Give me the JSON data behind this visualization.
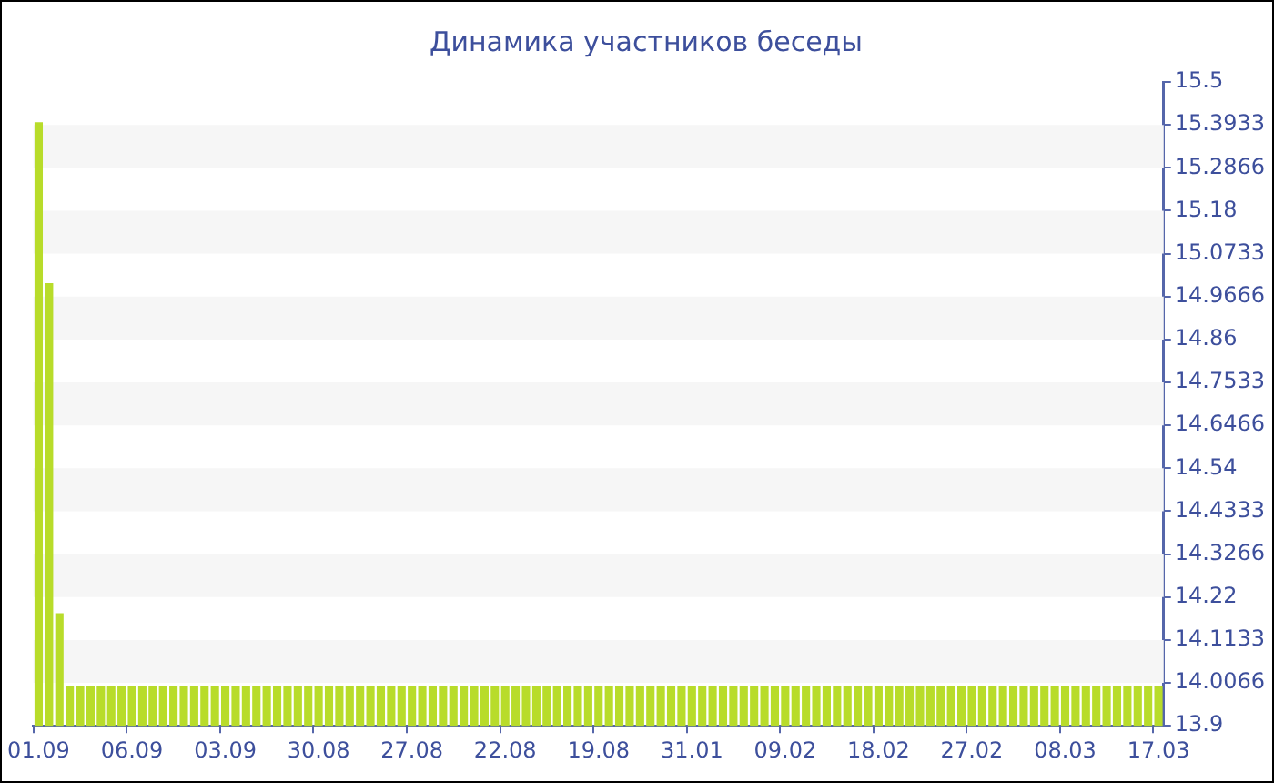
{
  "chart_data": {
    "type": "bar",
    "title": "Динамика участников беседы",
    "categories": [
      "01.09",
      null,
      null,
      null,
      null,
      null,
      null,
      null,
      null,
      "06.09",
      null,
      null,
      null,
      null,
      null,
      null,
      null,
      null,
      "03.09",
      null,
      null,
      null,
      null,
      null,
      null,
      null,
      null,
      "30.08",
      null,
      null,
      null,
      null,
      null,
      null,
      null,
      null,
      "27.08",
      null,
      null,
      null,
      null,
      null,
      null,
      null,
      null,
      "22.08",
      null,
      null,
      null,
      null,
      null,
      null,
      null,
      null,
      "19.08",
      null,
      null,
      null,
      null,
      null,
      null,
      null,
      null,
      "31.01",
      null,
      null,
      null,
      null,
      null,
      null,
      null,
      null,
      "09.02",
      null,
      null,
      null,
      null,
      null,
      null,
      null,
      null,
      "18.02",
      null,
      null,
      null,
      null,
      null,
      null,
      null,
      null,
      "27.02",
      null,
      null,
      null,
      null,
      null,
      null,
      null,
      null,
      "08.03",
      null,
      null,
      null,
      null,
      null,
      null,
      null,
      null,
      "17.03"
    ],
    "values": [
      15.4,
      15.0,
      14.18,
      14,
      14,
      14,
      14,
      14,
      14,
      14,
      14,
      14,
      14,
      14,
      14,
      14,
      14,
      14,
      14,
      14,
      14,
      14,
      14,
      14,
      14,
      14,
      14,
      14,
      14,
      14,
      14,
      14,
      14,
      14,
      14,
      14,
      14,
      14,
      14,
      14,
      14,
      14,
      14,
      14,
      14,
      14,
      14,
      14,
      14,
      14,
      14,
      14,
      14,
      14,
      14,
      14,
      14,
      14,
      14,
      14,
      14,
      14,
      14,
      14,
      14,
      14,
      14,
      14,
      14,
      14,
      14,
      14,
      14,
      14,
      14,
      14,
      14,
      14,
      14,
      14,
      14,
      14,
      14,
      14,
      14,
      14,
      14,
      14,
      14,
      14,
      14,
      14,
      14,
      14,
      14,
      14,
      14,
      14,
      14,
      14,
      14,
      14,
      14,
      14,
      14,
      14,
      14,
      14,
      14
    ],
    "color": "#b8dc2a",
    "ylim": [
      13.9,
      15.5
    ],
    "yticks": [
      13.9,
      {
        "value": 14.0066,
        "label": "14.0066"
      },
      {
        "value": 14.1133,
        "label": "14.1133"
      },
      14.22,
      {
        "value": 14.3266,
        "label": "14.3266"
      },
      {
        "value": 14.4333,
        "label": "14.4333"
      },
      14.54,
      {
        "value": 14.6466,
        "label": "14.6466"
      },
      {
        "value": 14.7533,
        "label": "14.7533"
      },
      14.86,
      {
        "value": 14.9666,
        "label": "14.9666"
      },
      {
        "value": 15.0733,
        "label": "15.0733"
      },
      15.18,
      {
        "value": 15.2866,
        "label": "15.2866"
      },
      {
        "value": 15.3933,
        "label": "15.3933"
      },
      15.5
    ],
    "bands": [
      {
        "axis": "y",
        "from": 14.0066,
        "to": 14.1133,
        "color": "#f6f6f6"
      },
      {
        "axis": "y",
        "from": 14.22,
        "to": 14.3266,
        "color": "#f6f6f6"
      },
      {
        "axis": "y",
        "from": 14.4333,
        "to": 14.54,
        "color": "#f6f6f6"
      },
      {
        "axis": "y",
        "from": 14.6466,
        "to": 14.7533,
        "color": "#f6f6f6"
      },
      {
        "axis": "y",
        "from": 14.86,
        "to": 14.9666,
        "color": "#f6f6f6"
      },
      {
        "axis": "y",
        "from": 15.0733,
        "to": 15.18,
        "color": "#f6f6f6"
      },
      {
        "axis": "y",
        "from": 15.2866,
        "to": 15.3933,
        "color": "#f6f6f6"
      }
    ]
  }
}
